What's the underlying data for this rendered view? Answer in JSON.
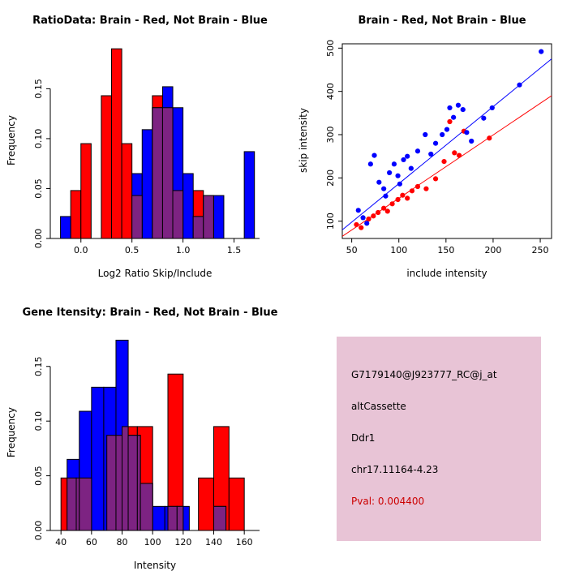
{
  "colors": {
    "red": "#FF0000",
    "blue": "#0000FF",
    "overlap": "#7D2382",
    "axis": "#000000",
    "info_bg": "#E8C4D6",
    "pval_text": "#CC0000"
  },
  "chart_data": [
    {
      "id": "ratio_hist",
      "type": "bar",
      "title": "RatioData: Brain - Red, Not Brain - Blue",
      "xlabel": "Log2 Ratio Skip/Include",
      "ylabel": "Frequency",
      "xlim": [
        -0.3,
        1.75
      ],
      "ylim": [
        0,
        0.195
      ],
      "xticks": [
        0.0,
        0.5,
        1.0,
        1.5
      ],
      "xtick_labels": [
        "0.0",
        "0.5",
        "1.0",
        "1.5"
      ],
      "yticks": [
        0.0,
        0.05,
        0.1,
        0.15
      ],
      "ytick_labels": [
        "0.00",
        "0.05",
        "0.10",
        "0.15"
      ],
      "bin_width": 0.1,
      "series": [
        {
          "name": "Brain",
          "color": "red",
          "bin_width": 0.1,
          "bins": [
            [
              -0.1,
              0.048
            ],
            [
              0.0,
              0.095
            ],
            [
              0.2,
              0.143
            ],
            [
              0.3,
              0.19
            ],
            [
              0.4,
              0.095
            ],
            [
              0.5,
              0.043
            ],
            [
              0.7,
              0.143
            ],
            [
              0.8,
              0.131
            ],
            [
              0.9,
              0.048
            ],
            [
              1.1,
              0.048
            ],
            [
              1.2,
              0.043
            ]
          ]
        },
        {
          "name": "Not Brain",
          "color": "blue",
          "bin_width": 0.1,
          "bins": [
            [
              -0.2,
              0.022
            ],
            [
              0.5,
              0.065
            ],
            [
              0.6,
              0.109
            ],
            [
              0.7,
              0.131
            ],
            [
              0.8,
              0.152
            ],
            [
              0.9,
              0.131
            ],
            [
              1.0,
              0.065
            ],
            [
              1.1,
              0.022
            ],
            [
              1.2,
              0.043
            ],
            [
              1.3,
              0.043
            ],
            [
              1.6,
              0.087
            ]
          ]
        }
      ]
    },
    {
      "id": "intensity_scatter",
      "type": "scatter",
      "title": "Brain - Red, Not Brain - Blue",
      "xlabel": "include intensity",
      "ylabel": "skip intensity",
      "xlim": [
        40,
        262
      ],
      "ylim": [
        60,
        510
      ],
      "xticks": [
        50,
        100,
        150,
        200,
        250
      ],
      "xtick_labels": [
        "50",
        "100",
        "150",
        "200",
        "250"
      ],
      "yticks": [
        100,
        200,
        300,
        400,
        500
      ],
      "ytick_labels": [
        "100",
        "200",
        "300",
        "400",
        "500"
      ],
      "series": [
        {
          "name": "Brain",
          "color": "red",
          "points": [
            [
              55,
              92
            ],
            [
              60,
              85
            ],
            [
              68,
              105
            ],
            [
              73,
              112
            ],
            [
              78,
              120
            ],
            [
              84,
              130
            ],
            [
              88,
              123
            ],
            [
              93,
              140
            ],
            [
              99,
              150
            ],
            [
              104,
              160
            ],
            [
              109,
              153
            ],
            [
              114,
              170
            ],
            [
              120,
              180
            ],
            [
              129,
              175
            ],
            [
              139,
              198
            ],
            [
              148,
              238
            ],
            [
              154,
              330
            ],
            [
              159,
              258
            ],
            [
              164,
              252
            ],
            [
              169,
              308
            ],
            [
              196,
              292
            ]
          ]
        },
        {
          "name": "Not Brain",
          "color": "blue",
          "points": [
            [
              57,
              125
            ],
            [
              62,
              108
            ],
            [
              66,
              95
            ],
            [
              70,
              232
            ],
            [
              74,
              252
            ],
            [
              79,
              190
            ],
            [
              84,
              175
            ],
            [
              86,
              158
            ],
            [
              90,
              212
            ],
            [
              95,
              232
            ],
            [
              99,
              205
            ],
            [
              101,
              186
            ],
            [
              105,
              242
            ],
            [
              109,
              250
            ],
            [
              113,
              222
            ],
            [
              120,
              262
            ],
            [
              128,
              300
            ],
            [
              134,
              255
            ],
            [
              139,
              280
            ],
            [
              146,
              300
            ],
            [
              151,
              312
            ],
            [
              154,
              362
            ],
            [
              158,
              340
            ],
            [
              163,
              368
            ],
            [
              168,
              358
            ],
            [
              172,
              305
            ],
            [
              177,
              285
            ],
            [
              190,
              338
            ],
            [
              199,
              362
            ],
            [
              228,
              415
            ],
            [
              251,
              492
            ]
          ]
        }
      ],
      "lines": [
        {
          "color": "blue",
          "x1": 40,
          "y1": 80,
          "x2": 262,
          "y2": 475
        },
        {
          "color": "red",
          "x1": 40,
          "y1": 65,
          "x2": 262,
          "y2": 390
        }
      ]
    },
    {
      "id": "gene_hist",
      "type": "bar",
      "title": "Gene Itensity: Brain - Red, Not Brain - Blue",
      "xlabel": "Intensity",
      "ylabel": "Frequency",
      "xlim": [
        33,
        170
      ],
      "ylim": [
        0,
        0.178
      ],
      "xticks": [
        40,
        60,
        80,
        100,
        120,
        140,
        160
      ],
      "xtick_labels": [
        "40",
        "60",
        "80",
        "100",
        "120",
        "140",
        "160"
      ],
      "yticks": [
        0.0,
        0.05,
        0.1,
        0.15
      ],
      "ytick_labels": [
        "0.00",
        "0.05",
        "0.10",
        "0.15"
      ],
      "bin_width": 10,
      "series": [
        {
          "name": "Brain",
          "color": "red",
          "bin_width": 10,
          "bins": [
            [
              40,
              0.048
            ],
            [
              50,
              0.048
            ],
            [
              70,
              0.087
            ],
            [
              80,
              0.095
            ],
            [
              90,
              0.095
            ],
            [
              110,
              0.143
            ],
            [
              130,
              0.048
            ],
            [
              140,
              0.095
            ],
            [
              150,
              0.048
            ]
          ]
        },
        {
          "name": "Not Brain",
          "color": "blue",
          "bin_width": 8,
          "bins": [
            [
              44,
              0.065
            ],
            [
              52,
              0.109
            ],
            [
              60,
              0.131
            ],
            [
              68,
              0.131
            ],
            [
              76,
              0.174
            ],
            [
              84,
              0.087
            ],
            [
              92,
              0.043
            ],
            [
              100,
              0.022
            ],
            [
              108,
              0.022
            ],
            [
              116,
              0.022
            ],
            [
              140,
              0.022
            ]
          ]
        }
      ]
    }
  ],
  "info_box": {
    "lines": [
      "G7179140@J923777_RC@j_at",
      "altCassette",
      "Ddr1",
      "chr17.11164-4.23"
    ],
    "pval": "Pval: 0.004400"
  }
}
